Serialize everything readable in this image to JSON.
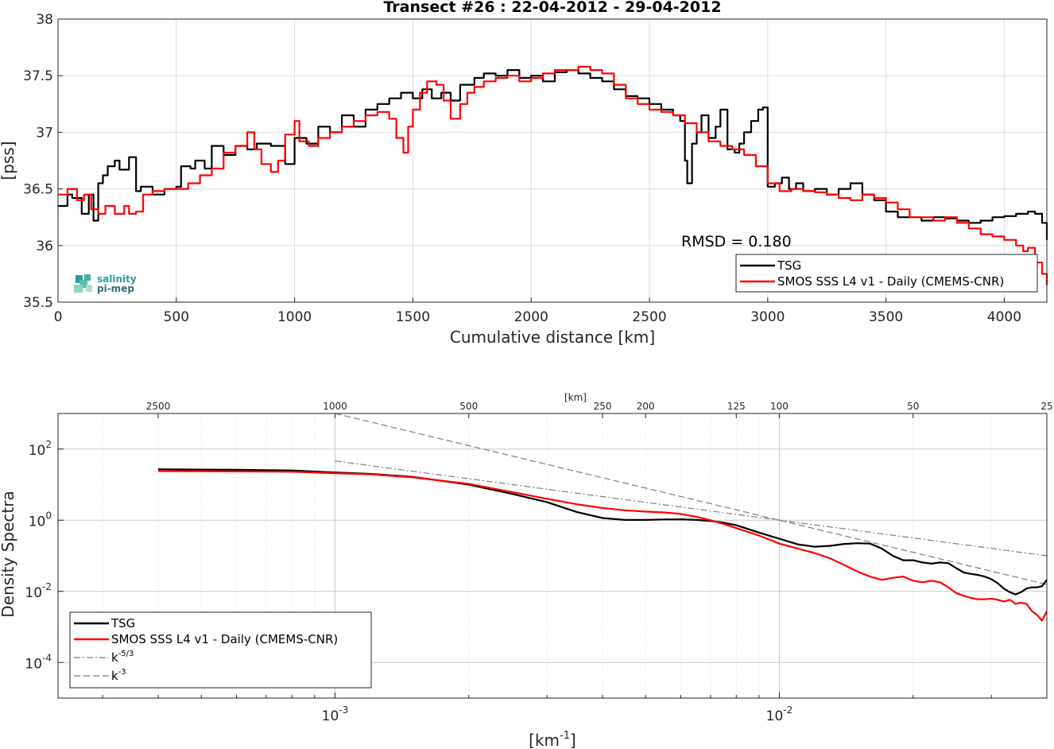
{
  "chart_data": [
    {
      "type": "line",
      "title": "Transect #26 : 22-04-2012 - 29-04-2012",
      "xlabel": "Cumulative distance [km]",
      "ylabel": "[pss]",
      "xlim": [
        0,
        4180
      ],
      "ylim": [
        35.5,
        38
      ],
      "xticks": [
        0,
        500,
        1000,
        1500,
        2000,
        2500,
        3000,
        3500,
        4000
      ],
      "yticks": [
        35.5,
        36,
        36.5,
        37,
        37.5,
        38
      ],
      "xtick_labels": [
        "0",
        "500",
        "1000",
        "1500",
        "2000",
        "2500",
        "3000",
        "3500",
        "4000"
      ],
      "ytick_labels": [
        "35.5",
        "36",
        "36.5",
        "37",
        "37.5",
        "38"
      ],
      "grid": true,
      "legend": "bottom-right",
      "annotation": "RMSD = 0.180",
      "series": [
        {
          "name": "TSG",
          "color": "#000000",
          "x": [
            0,
            40,
            60,
            100,
            130,
            150,
            170,
            190,
            210,
            240,
            260,
            300,
            330,
            350,
            400,
            450,
            500,
            520,
            560,
            580,
            620,
            650,
            700,
            750,
            800,
            840,
            900,
            960,
            1000,
            1050,
            1100,
            1150,
            1200,
            1250,
            1300,
            1350,
            1400,
            1450,
            1500,
            1540,
            1580,
            1620,
            1660,
            1700,
            1760,
            1800,
            1850,
            1900,
            1950,
            2000,
            2050,
            2100,
            2150,
            2200,
            2250,
            2300,
            2350,
            2400,
            2450,
            2500,
            2550,
            2600,
            2630,
            2650,
            2660,
            2680,
            2700,
            2720,
            2750,
            2780,
            2800,
            2830,
            2860,
            2880,
            2900,
            2930,
            2960,
            2980,
            3000,
            3030,
            3060,
            3090,
            3120,
            3150,
            3200,
            3250,
            3300,
            3350,
            3400,
            3450,
            3500,
            3550,
            3600,
            3650,
            3700,
            3750,
            3800,
            3850,
            3900,
            3950,
            4000,
            4050,
            4100,
            4130,
            4160,
            4180
          ],
          "y": [
            36.35,
            36.45,
            36.42,
            36.28,
            36.45,
            36.22,
            36.55,
            36.62,
            36.7,
            36.75,
            36.67,
            36.78,
            36.48,
            36.52,
            36.45,
            36.5,
            36.52,
            36.7,
            36.68,
            36.75,
            36.68,
            36.88,
            36.8,
            36.88,
            36.85,
            36.9,
            36.88,
            36.72,
            36.95,
            36.9,
            37.05,
            37.0,
            37.15,
            37.05,
            37.2,
            37.25,
            37.3,
            37.35,
            37.3,
            37.38,
            37.3,
            37.35,
            37.28,
            37.42,
            37.48,
            37.52,
            37.5,
            37.55,
            37.48,
            37.5,
            37.45,
            37.53,
            37.55,
            37.52,
            37.48,
            37.45,
            37.38,
            37.32,
            37.3,
            37.25,
            37.2,
            37.15,
            37.1,
            36.75,
            36.55,
            36.9,
            37.0,
            37.15,
            36.95,
            37.05,
            37.2,
            36.85,
            36.82,
            36.9,
            37.0,
            37.1,
            37.2,
            37.22,
            36.52,
            36.55,
            36.6,
            36.5,
            36.55,
            36.48,
            36.5,
            36.45,
            36.5,
            36.55,
            36.45,
            36.4,
            36.3,
            36.25,
            36.25,
            36.22,
            36.25,
            36.24,
            36.22,
            36.2,
            36.22,
            36.25,
            36.26,
            36.28,
            36.3,
            36.28,
            36.2,
            36.05
          ],
          "width": 2.2
        },
        {
          "name": "SMOS SSS L4 v1 - Daily (CMEMS-CNR)",
          "color": "#ff0000",
          "x": [
            0,
            40,
            80,
            110,
            140,
            170,
            200,
            240,
            280,
            300,
            330,
            360,
            400,
            450,
            500,
            550,
            600,
            650,
            700,
            750,
            800,
            830,
            860,
            900,
            930,
            960,
            1000,
            1020,
            1060,
            1100,
            1150,
            1200,
            1250,
            1300,
            1350,
            1400,
            1430,
            1460,
            1480,
            1500,
            1530,
            1560,
            1600,
            1630,
            1660,
            1700,
            1730,
            1760,
            1800,
            1850,
            1900,
            1950,
            2000,
            2050,
            2100,
            2150,
            2200,
            2250,
            2300,
            2350,
            2400,
            2450,
            2500,
            2550,
            2600,
            2650,
            2700,
            2750,
            2800,
            2850,
            2900,
            2950,
            3000,
            3050,
            3100,
            3150,
            3200,
            3250,
            3300,
            3350,
            3400,
            3450,
            3500,
            3550,
            3600,
            3650,
            3700,
            3750,
            3800,
            3850,
            3900,
            3950,
            4000,
            4050,
            4080,
            4100,
            4130,
            4160,
            4180
          ],
          "y": [
            36.45,
            36.5,
            36.4,
            36.45,
            36.32,
            36.28,
            36.35,
            36.28,
            36.35,
            36.28,
            36.3,
            36.45,
            36.48,
            36.5,
            36.5,
            36.55,
            36.62,
            36.68,
            36.82,
            36.88,
            37.0,
            36.85,
            36.72,
            36.65,
            36.75,
            36.98,
            37.1,
            36.92,
            36.88,
            36.95,
            37.0,
            37.05,
            37.1,
            37.15,
            37.18,
            37.12,
            36.95,
            36.82,
            37.05,
            37.2,
            37.35,
            37.45,
            37.42,
            37.28,
            37.12,
            37.25,
            37.35,
            37.4,
            37.45,
            37.48,
            37.5,
            37.45,
            37.48,
            37.52,
            37.55,
            37.55,
            37.58,
            37.55,
            37.52,
            37.42,
            37.3,
            37.25,
            37.2,
            37.18,
            37.15,
            37.08,
            37.0,
            36.92,
            36.88,
            36.85,
            36.8,
            36.7,
            36.55,
            36.48,
            36.5,
            36.48,
            36.47,
            36.45,
            36.42,
            36.4,
            36.45,
            36.42,
            36.38,
            36.32,
            36.25,
            36.25,
            36.22,
            36.25,
            36.2,
            36.15,
            36.1,
            36.08,
            36.05,
            36.0,
            35.95,
            35.98,
            35.85,
            35.75,
            35.65
          ],
          "width": 2.2
        }
      ]
    },
    {
      "type": "line",
      "title": "",
      "xlabel": "[km⁻¹]",
      "xlabel_main": "[km",
      "xlabel_sup": "-1",
      "xlabel_tail": "]",
      "ylabel": "Density Spectra",
      "xscale": "log",
      "yscale": "log",
      "xlim": [
        0.000238,
        0.04
      ],
      "ylim": [
        1e-05,
        1000
      ],
      "xtick_labels": [
        {
          "base": "10",
          "exp": "-3",
          "value": 0.001
        },
        {
          "base": "10",
          "exp": "-2",
          "value": 0.01
        }
      ],
      "ytick_labels": [
        {
          "base": "10",
          "exp": "2",
          "value": 100
        },
        {
          "base": "10",
          "exp": "0",
          "value": 1
        },
        {
          "base": "10",
          "exp": "-2",
          "value": 0.01
        },
        {
          "base": "10",
          "exp": "-4",
          "value": 0.0001
        }
      ],
      "top_axis_label": "[km]",
      "top_ticks": [
        "2500",
        "1000",
        "500",
        "250",
        "200",
        "125",
        "100",
        "50",
        "25"
      ],
      "top_tick_values_km": [
        2500,
        1000,
        500,
        250,
        200,
        125,
        100,
        50,
        25
      ],
      "grid": true,
      "legend": "bottom-left",
      "series": [
        {
          "name": "TSG",
          "color": "#000000",
          "x": [
            0.0004,
            0.0005,
            0.0006,
            0.0008,
            0.001,
            0.0012,
            0.0015,
            0.002,
            0.0025,
            0.003,
            0.0035,
            0.004,
            0.0045,
            0.005,
            0.0055,
            0.006,
            0.0065,
            0.007,
            0.0075,
            0.008,
            0.009,
            0.01,
            0.011,
            0.012,
            0.013,
            0.014,
            0.015,
            0.016,
            0.017,
            0.018,
            0.019,
            0.02,
            0.021,
            0.022,
            0.023,
            0.024,
            0.025,
            0.026,
            0.027,
            0.028,
            0.029,
            0.03,
            0.031,
            0.032,
            0.033,
            0.034,
            0.035,
            0.036,
            0.037,
            0.038,
            0.039,
            0.04
          ],
          "y": [
            27,
            26.5,
            26,
            25,
            22,
            20,
            16.5,
            10,
            5.5,
            3.2,
            1.7,
            1.15,
            1.02,
            1.02,
            1.05,
            1.06,
            1.02,
            0.95,
            0.85,
            0.72,
            0.45,
            0.3,
            0.21,
            0.18,
            0.19,
            0.215,
            0.225,
            0.22,
            0.16,
            0.1,
            0.075,
            0.075,
            0.065,
            0.06,
            0.065,
            0.062,
            0.045,
            0.034,
            0.031,
            0.029,
            0.026,
            0.022,
            0.017,
            0.012,
            0.0095,
            0.0082,
            0.0095,
            0.012,
            0.013,
            0.013,
            0.014,
            0.021
          ],
          "width": 2.2
        },
        {
          "name": "SMOS SSS L4 v1 - Daily (CMEMS-CNR)",
          "color": "#ff0000",
          "x": [
            0.0004,
            0.0005,
            0.0006,
            0.0008,
            0.001,
            0.0012,
            0.0015,
            0.002,
            0.0025,
            0.003,
            0.0035,
            0.004,
            0.0045,
            0.005,
            0.0055,
            0.006,
            0.0065,
            0.007,
            0.0075,
            0.008,
            0.009,
            0.01,
            0.011,
            0.012,
            0.013,
            0.014,
            0.015,
            0.016,
            0.017,
            0.018,
            0.019,
            0.02,
            0.021,
            0.022,
            0.023,
            0.024,
            0.025,
            0.026,
            0.027,
            0.028,
            0.029,
            0.03,
            0.031,
            0.032,
            0.033,
            0.034,
            0.035,
            0.036,
            0.037,
            0.038,
            0.039,
            0.04
          ],
          "y": [
            24,
            23.8,
            23.5,
            23,
            21,
            19.5,
            16,
            10.5,
            6.2,
            4.0,
            2.8,
            2.2,
            1.9,
            1.75,
            1.65,
            1.5,
            1.25,
            1.0,
            0.78,
            0.6,
            0.37,
            0.22,
            0.16,
            0.12,
            0.085,
            0.055,
            0.036,
            0.026,
            0.021,
            0.024,
            0.026,
            0.02,
            0.018,
            0.02,
            0.018,
            0.013,
            0.009,
            0.0075,
            0.0065,
            0.006,
            0.006,
            0.0062,
            0.0058,
            0.0052,
            0.0058,
            0.0045,
            0.0048,
            0.0045,
            0.0028,
            0.0022,
            0.0015,
            0.0028
          ],
          "width": 2.2
        },
        {
          "name": "k^{-5/3}",
          "name_base": "k",
          "name_exp": "-5/3",
          "color": "#7f7f7f",
          "dash": "8,3,2,3",
          "x": [
            0.001,
            0.04
          ],
          "y": [
            46.4,
            0.1
          ],
          "width": 1.2
        },
        {
          "name": "k^{-3}",
          "name_base": "k",
          "name_exp": "-3",
          "color": "#7f7f7f",
          "dash": "8,4",
          "x": [
            0.001,
            0.04
          ],
          "y": [
            1000,
            0.0156
          ],
          "width": 1.2
        }
      ]
    }
  ],
  "logo": {
    "line1": "salinity",
    "line2": "pi-mep",
    "colors": [
      "#2a9d9a",
      "#5bbfae",
      "#8fd3c4"
    ]
  }
}
